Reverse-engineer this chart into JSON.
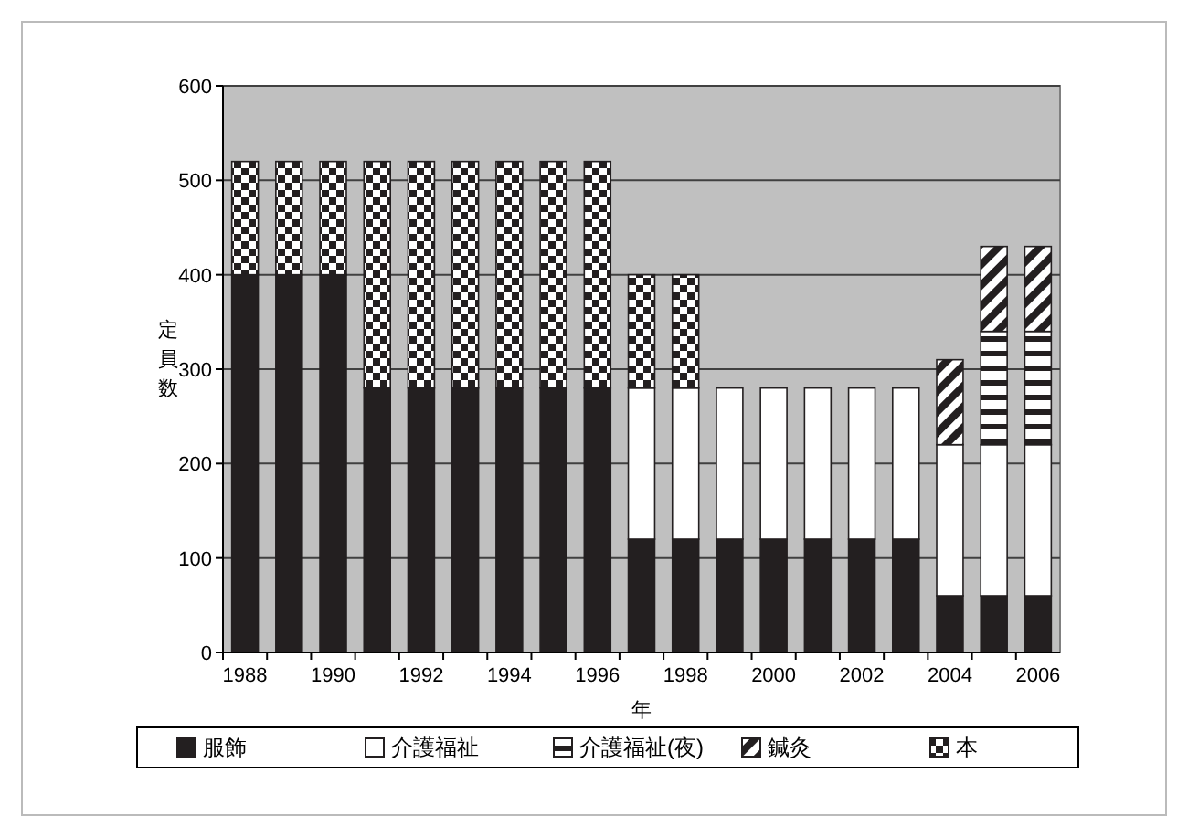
{
  "chart_data": {
    "type": "bar",
    "stacked": true,
    "xlabel": "年",
    "ylabel": "定員数",
    "categories": [
      "1988",
      null,
      "1990",
      null,
      "1992",
      null,
      "1994",
      null,
      "1996",
      null,
      "1998",
      null,
      "2000",
      null,
      "2002",
      null,
      "2004",
      null,
      "2006"
    ],
    "series": [
      {
        "name": "服飾",
        "color": "#231f20",
        "values": [
          400,
          400,
          400,
          280,
          280,
          280,
          280,
          280,
          280,
          120,
          120,
          120,
          120,
          120,
          120,
          120,
          60,
          60,
          60
        ]
      },
      {
        "name": "介護福祉",
        "color": "#ffffff",
        "values": [
          null,
          null,
          null,
          null,
          null,
          null,
          null,
          null,
          null,
          160,
          160,
          160,
          160,
          160,
          160,
          160,
          160,
          160,
          160
        ]
      },
      {
        "name": "介護福祉(夜)",
        "color": "#231f20",
        "values": [
          null,
          null,
          null,
          null,
          null,
          null,
          null,
          null,
          null,
          null,
          null,
          null,
          null,
          null,
          null,
          null,
          null,
          120,
          120
        ]
      },
      {
        "name": "鍼灸",
        "color": "#231f20",
        "values": [
          null,
          null,
          null,
          null,
          null,
          null,
          null,
          null,
          null,
          null,
          null,
          null,
          null,
          null,
          null,
          null,
          90,
          90,
          90
        ]
      },
      {
        "name": "本",
        "color": "#231f20",
        "values": [
          120,
          120,
          120,
          240,
          240,
          240,
          240,
          240,
          240,
          120,
          120,
          null,
          null,
          null,
          null,
          null,
          null,
          null,
          null
        ]
      }
    ],
    "ylim": [
      0,
      600
    ],
    "yticks": [
      0,
      100,
      200,
      300,
      400,
      500,
      600
    ],
    "grid": "y",
    "legend": "bottom"
  }
}
